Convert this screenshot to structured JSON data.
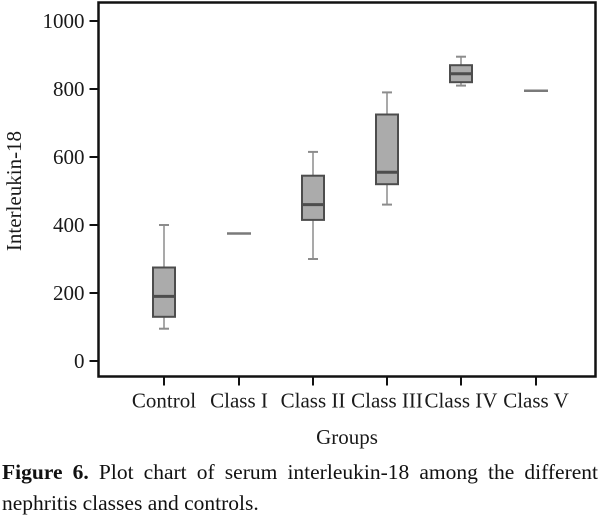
{
  "figure": {
    "caption_label": "Figure 6.",
    "caption_text": "Plot chart of serum interleukin-18 among the different nephritis classes and controls."
  },
  "chart_data": {
    "type": "boxplot",
    "title": "",
    "xlabel": "Groups",
    "ylabel": "Interleukin-18",
    "ylim": [
      0,
      1000
    ],
    "y_ticks": [
      0,
      200,
      400,
      600,
      800,
      1000
    ],
    "grid": false,
    "legend": "none",
    "categories": [
      "Control",
      "Class I",
      "Class II",
      "Class III",
      "Class IV",
      "Class V"
    ],
    "series": [
      {
        "name": "Control",
        "whisker_low": 95,
        "q1": 130,
        "median": 190,
        "q3": 275,
        "whisker_high": 400
      },
      {
        "name": "Class I",
        "median": 375
      },
      {
        "name": "Class II",
        "whisker_low": 300,
        "q1": 415,
        "median": 460,
        "q3": 545,
        "whisker_high": 615
      },
      {
        "name": "Class III",
        "whisker_low": 460,
        "q1": 520,
        "median": 555,
        "q3": 725,
        "whisker_high": 790
      },
      {
        "name": "Class IV",
        "whisker_low": 810,
        "q1": 820,
        "median": 845,
        "q3": 870,
        "whisker_high": 895
      },
      {
        "name": "Class V",
        "median": 795
      }
    ],
    "colors": {
      "box_fill": "#ABABAB",
      "box_border": "#4D4D4D",
      "median_line": "#4D4D4D",
      "whisker": "#8C8C8C",
      "lone_line": "#7A7A7A",
      "axis": "#111111",
      "text": "#1A1A1A"
    }
  }
}
